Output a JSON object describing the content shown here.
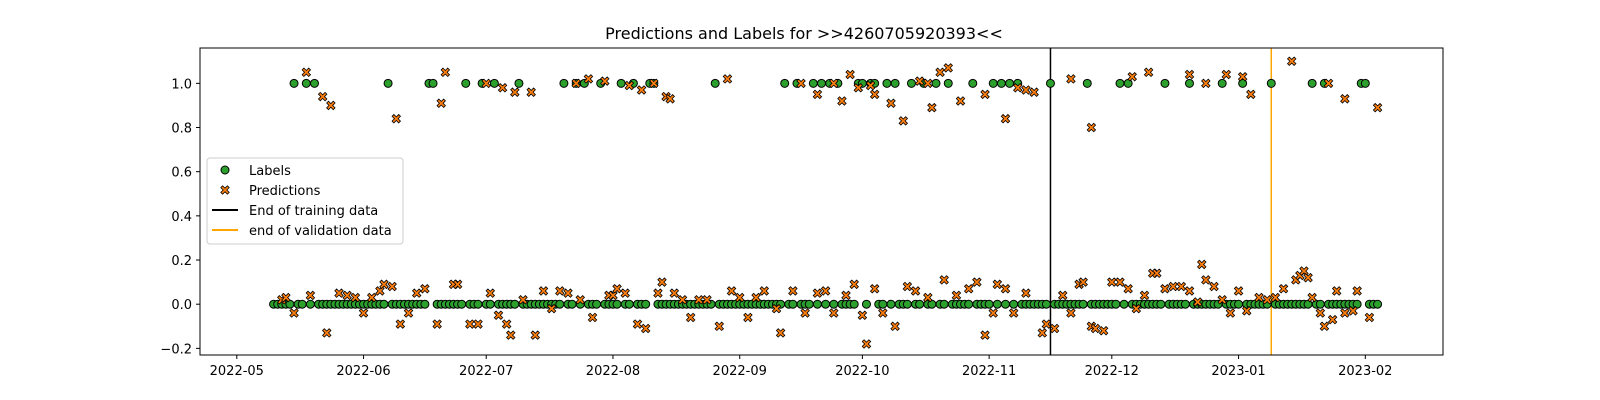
{
  "chart_data": {
    "type": "scatter",
    "title": "Predictions and Labels for >>4260705920393<<",
    "xlabel": "",
    "ylabel": "",
    "xlim": [
      "2022-04-22",
      "2023-02-20"
    ],
    "ylim": [
      -0.23,
      1.16
    ],
    "x_ticks": [
      "2022-05",
      "2022-06",
      "2022-07",
      "2022-08",
      "2022-09",
      "2022-10",
      "2022-11",
      "2022-12",
      "2023-01",
      "2023-02"
    ],
    "y_ticks": [
      -0.2,
      0.0,
      0.2,
      0.4,
      0.6,
      0.8,
      1.0
    ],
    "y_tick_labels": [
      "−0.2",
      "0.0",
      "0.2",
      "0.4",
      "0.6",
      "0.8",
      "1.0"
    ],
    "grid": false,
    "legend_position": "center-left",
    "legend": [
      {
        "label": "Labels",
        "kind": "circle",
        "color": "#2ca02c"
      },
      {
        "label": "Predictions",
        "kind": "x",
        "color": "#ff7f0e"
      },
      {
        "label": "End of training data",
        "kind": "line",
        "color": "#000000"
      },
      {
        "label": "end of validation data",
        "kind": "line",
        "color": "#ffa500"
      }
    ],
    "vlines": [
      {
        "date": "2022-11-16",
        "color": "#000000",
        "name": "End of training data"
      },
      {
        "date": "2023-01-09",
        "color": "#ffa500",
        "name": "end of validation data"
      }
    ],
    "series": [
      {
        "name": "Labels",
        "marker": "circle",
        "color": "#2ca02c",
        "start": "2022-05-10",
        "end": "2023-02-04",
        "default_value": 0,
        "ones": [
          "2022-05-15",
          "2022-05-18",
          "2022-05-20",
          "2022-06-07",
          "2022-06-17",
          "2022-06-18",
          "2022-06-26",
          "2022-06-30",
          "2022-07-03",
          "2022-07-09",
          "2022-07-20",
          "2022-07-23",
          "2022-07-25",
          "2022-07-29",
          "2022-08-03",
          "2022-08-06",
          "2022-08-10",
          "2022-08-11",
          "2022-08-26",
          "2022-09-12",
          "2022-09-15",
          "2022-09-19",
          "2022-09-21",
          "2022-09-23",
          "2022-09-25",
          "2022-09-30",
          "2022-10-01",
          "2022-10-03",
          "2022-10-04",
          "2022-10-07",
          "2022-10-09",
          "2022-10-13",
          "2022-10-16",
          "2022-10-19",
          "2022-10-22",
          "2022-10-28",
          "2022-11-02",
          "2022-11-04",
          "2022-11-06",
          "2022-11-08",
          "2022-11-16",
          "2022-11-25",
          "2022-12-03",
          "2022-12-05",
          "2022-12-14",
          "2022-12-20",
          "2022-12-28",
          "2023-01-02",
          "2023-01-09",
          "2023-01-19",
          "2023-01-22",
          "2023-01-31",
          "2023-02-01"
        ]
      },
      {
        "name": "Predictions",
        "marker": "x",
        "color": "#ff7f0e",
        "high_points": [
          [
            "2022-05-18",
            1.05
          ],
          [
            "2022-05-22",
            0.94
          ],
          [
            "2022-05-24",
            0.9
          ],
          [
            "2022-06-09",
            0.84
          ],
          [
            "2022-06-21",
            1.05
          ],
          [
            "2022-06-20",
            0.91
          ],
          [
            "2022-07-01",
            1.0
          ],
          [
            "2022-07-05",
            0.98
          ],
          [
            "2022-07-08",
            0.96
          ],
          [
            "2022-07-12",
            0.96
          ],
          [
            "2022-07-23",
            1.0
          ],
          [
            "2022-07-26",
            1.02
          ],
          [
            "2022-07-30",
            1.01
          ],
          [
            "2022-08-05",
            0.99
          ],
          [
            "2022-08-08",
            0.97
          ],
          [
            "2022-08-11",
            1.0
          ],
          [
            "2022-08-14",
            0.94
          ],
          [
            "2022-08-15",
            0.93
          ],
          [
            "2022-08-29",
            1.02
          ],
          [
            "2022-09-16",
            1.0
          ],
          [
            "2022-09-20",
            0.95
          ],
          [
            "2022-09-24",
            1.0
          ],
          [
            "2022-09-26",
            0.92
          ],
          [
            "2022-09-28",
            1.04
          ],
          [
            "2022-09-30",
            0.98
          ],
          [
            "2022-10-03",
            0.99
          ],
          [
            "2022-10-04",
            0.95
          ],
          [
            "2022-10-08",
            0.91
          ],
          [
            "2022-10-11",
            0.83
          ],
          [
            "2022-10-15",
            1.01
          ],
          [
            "2022-10-17",
            1.0
          ],
          [
            "2022-10-18",
            0.89
          ],
          [
            "2022-10-20",
            1.05
          ],
          [
            "2022-10-22",
            1.07
          ],
          [
            "2022-10-25",
            0.92
          ],
          [
            "2022-10-31",
            0.95
          ],
          [
            "2022-11-05",
            0.84
          ],
          [
            "2022-11-08",
            0.98
          ],
          [
            "2022-11-10",
            0.97
          ],
          [
            "2022-11-12",
            0.96
          ],
          [
            "2022-11-21",
            1.02
          ],
          [
            "2022-11-26",
            0.8
          ],
          [
            "2022-12-06",
            1.03
          ],
          [
            "2022-12-10",
            1.05
          ],
          [
            "2022-12-20",
            1.04
          ],
          [
            "2022-12-24",
            1.0
          ],
          [
            "2022-12-29",
            1.04
          ],
          [
            "2023-01-02",
            1.03
          ],
          [
            "2023-01-04",
            0.95
          ],
          [
            "2023-01-14",
            1.1
          ],
          [
            "2023-01-23",
            1.0
          ],
          [
            "2023-01-27",
            0.93
          ],
          [
            "2023-02-04",
            0.89
          ]
        ],
        "low_points": [
          [
            "2022-05-12",
            0.02
          ],
          [
            "2022-05-13",
            0.03
          ],
          [
            "2022-05-15",
            -0.04
          ],
          [
            "2022-05-19",
            0.04
          ],
          [
            "2022-05-23",
            -0.13
          ],
          [
            "2022-05-26",
            0.05
          ],
          [
            "2022-05-28",
            0.04
          ],
          [
            "2022-05-30",
            0.03
          ],
          [
            "2022-06-01",
            -0.04
          ],
          [
            "2022-06-03",
            0.03
          ],
          [
            "2022-06-05",
            0.06
          ],
          [
            "2022-06-06",
            0.09
          ],
          [
            "2022-06-08",
            0.08
          ],
          [
            "2022-06-10",
            -0.09
          ],
          [
            "2022-06-12",
            -0.04
          ],
          [
            "2022-06-14",
            0.05
          ],
          [
            "2022-06-16",
            0.07
          ],
          [
            "2022-06-19",
            -0.09
          ],
          [
            "2022-06-23",
            0.09
          ],
          [
            "2022-06-24",
            0.09
          ],
          [
            "2022-06-27",
            -0.09
          ],
          [
            "2022-06-29",
            -0.09
          ],
          [
            "2022-07-02",
            0.05
          ],
          [
            "2022-07-04",
            -0.05
          ],
          [
            "2022-07-06",
            -0.09
          ],
          [
            "2022-07-07",
            -0.14
          ],
          [
            "2022-07-10",
            0.02
          ],
          [
            "2022-07-13",
            -0.14
          ],
          [
            "2022-07-15",
            0.06
          ],
          [
            "2022-07-17",
            -0.02
          ],
          [
            "2022-07-19",
            0.06
          ],
          [
            "2022-07-21",
            0.05
          ],
          [
            "2022-07-24",
            0.02
          ],
          [
            "2022-07-27",
            -0.06
          ],
          [
            "2022-07-31",
            0.04
          ],
          [
            "2022-08-01",
            0.04
          ],
          [
            "2022-08-02",
            0.07
          ],
          [
            "2022-08-04",
            0.05
          ],
          [
            "2022-08-07",
            -0.09
          ],
          [
            "2022-08-09",
            -0.11
          ],
          [
            "2022-08-12",
            0.05
          ],
          [
            "2022-08-13",
            0.1
          ],
          [
            "2022-08-16",
            0.05
          ],
          [
            "2022-08-18",
            0.02
          ],
          [
            "2022-08-20",
            -0.06
          ],
          [
            "2022-08-22",
            0.02
          ],
          [
            "2022-08-24",
            0.02
          ],
          [
            "2022-08-27",
            -0.1
          ],
          [
            "2022-08-30",
            0.06
          ],
          [
            "2022-09-01",
            0.03
          ],
          [
            "2022-09-03",
            -0.06
          ],
          [
            "2022-09-05",
            0.03
          ],
          [
            "2022-09-07",
            0.06
          ],
          [
            "2022-09-10",
            -0.02
          ],
          [
            "2022-09-11",
            -0.13
          ],
          [
            "2022-09-14",
            0.06
          ],
          [
            "2022-09-17",
            -0.04
          ],
          [
            "2022-09-20",
            0.05
          ],
          [
            "2022-09-22",
            0.06
          ],
          [
            "2022-09-24",
            -0.04
          ],
          [
            "2022-09-27",
            0.04
          ],
          [
            "2022-09-29",
            0.09
          ],
          [
            "2022-10-01",
            -0.05
          ],
          [
            "2022-10-02",
            -0.18
          ],
          [
            "2022-10-04",
            0.07
          ],
          [
            "2022-10-06",
            -0.04
          ],
          [
            "2022-10-09",
            -0.1
          ],
          [
            "2022-10-12",
            0.08
          ],
          [
            "2022-10-14",
            0.06
          ],
          [
            "2022-10-17",
            0.03
          ],
          [
            "2022-10-21",
            0.11
          ],
          [
            "2022-10-24",
            0.04
          ],
          [
            "2022-10-27",
            0.07
          ],
          [
            "2022-10-29",
            0.1
          ],
          [
            "2022-10-31",
            -0.14
          ],
          [
            "2022-11-02",
            -0.04
          ],
          [
            "2022-11-03",
            0.09
          ],
          [
            "2022-11-05",
            0.07
          ],
          [
            "2022-11-07",
            -0.04
          ],
          [
            "2022-11-10",
            0.05
          ],
          [
            "2022-11-14",
            -0.13
          ],
          [
            "2022-11-15",
            -0.09
          ],
          [
            "2022-11-17",
            -0.11
          ],
          [
            "2022-11-19",
            0.04
          ],
          [
            "2022-11-21",
            -0.04
          ],
          [
            "2022-11-23",
            0.09
          ],
          [
            "2022-11-24",
            0.1
          ],
          [
            "2022-11-26",
            -0.1
          ],
          [
            "2022-11-27",
            -0.11
          ],
          [
            "2022-11-29",
            -0.12
          ],
          [
            "2022-12-01",
            0.1
          ],
          [
            "2022-12-03",
            0.1
          ],
          [
            "2022-12-05",
            0.07
          ],
          [
            "2022-12-07",
            -0.02
          ],
          [
            "2022-12-09",
            0.04
          ],
          [
            "2022-12-11",
            0.14
          ],
          [
            "2022-12-12",
            0.14
          ],
          [
            "2022-12-14",
            0.07
          ],
          [
            "2022-12-16",
            0.08
          ],
          [
            "2022-12-18",
            0.08
          ],
          [
            "2022-12-20",
            0.06
          ],
          [
            "2022-12-22",
            0.01
          ],
          [
            "2022-12-23",
            0.18
          ],
          [
            "2022-12-24",
            0.11
          ],
          [
            "2022-12-26",
            0.08
          ],
          [
            "2022-12-28",
            0.02
          ],
          [
            "2022-12-30",
            -0.04
          ],
          [
            "2023-01-01",
            0.06
          ],
          [
            "2023-01-03",
            -0.03
          ],
          [
            "2023-01-06",
            0.03
          ],
          [
            "2023-01-08",
            0.02
          ],
          [
            "2023-01-10",
            0.03
          ],
          [
            "2023-01-12",
            0.07
          ],
          [
            "2023-01-15",
            0.11
          ],
          [
            "2023-01-16",
            0.13
          ],
          [
            "2023-01-17",
            0.15
          ],
          [
            "2023-01-18",
            0.12
          ],
          [
            "2023-01-19",
            0.03
          ],
          [
            "2023-01-21",
            -0.04
          ],
          [
            "2023-01-22",
            -0.1
          ],
          [
            "2023-01-24",
            -0.07
          ],
          [
            "2023-01-25",
            0.06
          ],
          [
            "2023-01-27",
            -0.04
          ],
          [
            "2023-01-29",
            -0.03
          ],
          [
            "2023-01-30",
            0.06
          ],
          [
            "2023-02-02",
            -0.06
          ]
        ]
      }
    ]
  }
}
